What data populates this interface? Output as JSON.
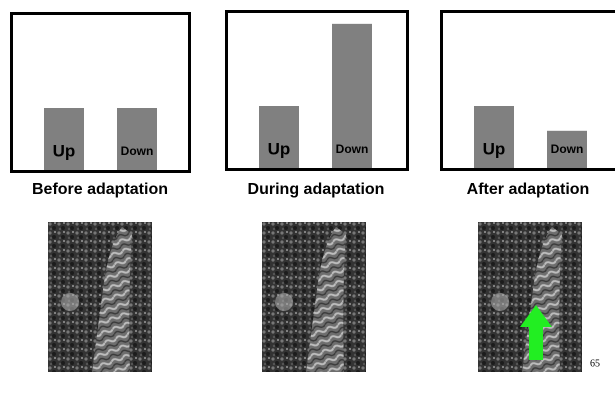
{
  "chart_data": [
    {
      "type": "bar",
      "title": "Before adaptation",
      "categories": [
        "Up",
        "Down"
      ],
      "values": [
        40,
        40
      ],
      "color": "#808080"
    },
    {
      "type": "bar",
      "title": "During adaptation",
      "categories": [
        "Up",
        "Down"
      ],
      "values": [
        40,
        93
      ],
      "color": "#808080"
    },
    {
      "type": "bar",
      "title": "After adaptation",
      "categories": [
        "Up",
        "Down"
      ],
      "values": [
        40,
        24
      ],
      "color": "#808080"
    }
  ],
  "page_number": "65"
}
